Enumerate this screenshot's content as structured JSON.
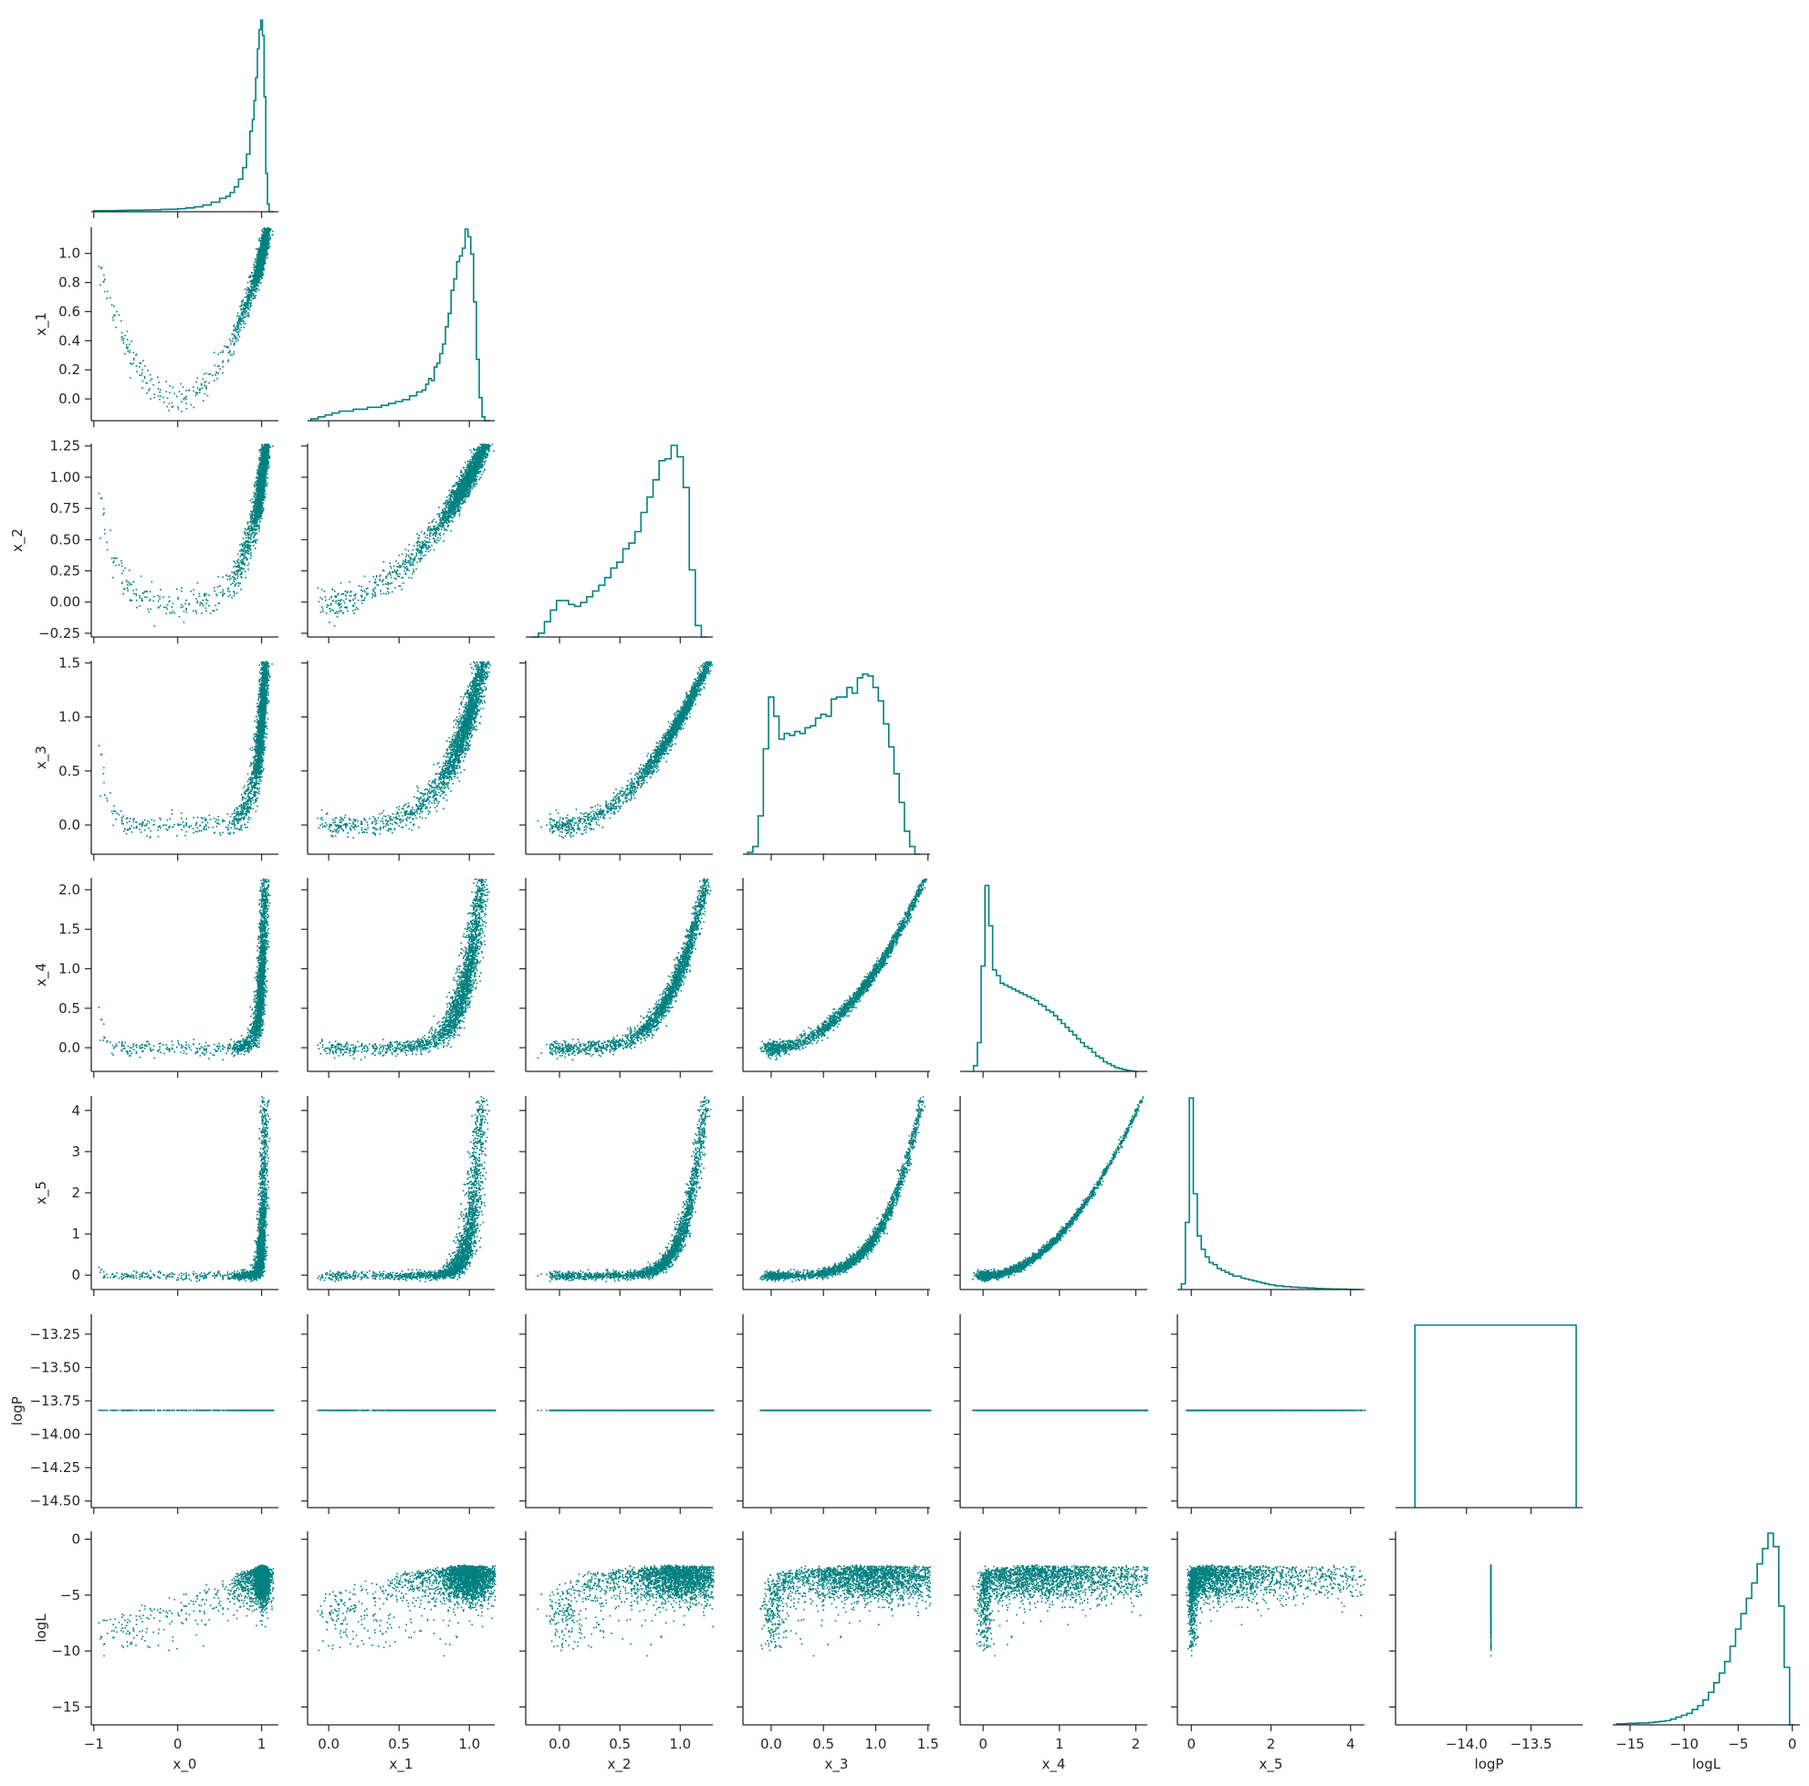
{
  "chart_data": {
    "type": "corner",
    "color": "#008080",
    "variables": [
      "x_0",
      "x_1",
      "x_2",
      "x_3",
      "x_4",
      "x_5",
      "logP",
      "logL"
    ],
    "axis_labels": [
      "x_0",
      "x_1",
      "x_2",
      "x_3",
      "x_4",
      "x_5",
      "logP",
      "logL"
    ],
    "ranges": {
      "x_0": [
        -1.03,
        1.2
      ],
      "x_1": [
        -0.15,
        1.18
      ],
      "x_2": [
        -0.28,
        1.27
      ],
      "x_3": [
        -0.27,
        1.52
      ],
      "x_4": [
        -0.3,
        2.15
      ],
      "x_5": [
        -0.35,
        4.35
      ],
      "logP": [
        -14.55,
        -13.1
      ],
      "logL": [
        -16.6,
        0.7
      ]
    },
    "ticks": {
      "x_0": {
        "values": [
          -1,
          0,
          1
        ],
        "labels": [
          "−1",
          "0",
          "1"
        ]
      },
      "x_1": {
        "values": [
          0,
          0.2,
          0.4,
          0.6,
          0.8,
          1.0
        ],
        "labels": [
          "0.0",
          "0.2",
          "0.4",
          "0.6",
          "0.8",
          "1.0"
        ],
        "xvalues": [
          0,
          0.5,
          1.0
        ],
        "xlabels": [
          "0.0",
          "0.5",
          "1.0"
        ]
      },
      "x_2": {
        "values": [
          -0.25,
          0,
          0.25,
          0.5,
          0.75,
          1.0,
          1.25
        ],
        "labels": [
          "−0.25",
          "0.00",
          "0.25",
          "0.50",
          "0.75",
          "1.00",
          "1.25"
        ],
        "xvalues": [
          0,
          0.5,
          1.0
        ],
        "xlabels": [
          "0.0",
          "0.5",
          "1.0"
        ]
      },
      "x_3": {
        "values": [
          0,
          0.5,
          1.0,
          1.5
        ],
        "labels": [
          "0.0",
          "0.5",
          "1.0",
          "1.5"
        ]
      },
      "x_4": {
        "values": [
          0,
          0.5,
          1.0,
          1.5,
          2.0
        ],
        "labels": [
          "0.0",
          "0.5",
          "1.0",
          "1.5",
          "2.0"
        ],
        "xvalues": [
          0,
          1,
          2
        ],
        "xlabels": [
          "0",
          "1",
          "2"
        ]
      },
      "x_5": {
        "values": [
          0,
          1,
          2,
          3,
          4
        ],
        "labels": [
          "0",
          "1",
          "2",
          "3",
          "4"
        ],
        "xvalues": [
          0,
          2,
          4
        ],
        "xlabels": [
          "0",
          "2",
          "4"
        ]
      },
      "logP": {
        "values": [
          -14.5,
          -14.25,
          -14.0,
          -13.75,
          -13.5,
          -13.25
        ],
        "labels": [
          "−14.50",
          "−14.25",
          "−14.00",
          "−13.75",
          "−13.50",
          "−13.25"
        ],
        "xvalues": [
          -14.0,
          -13.5
        ],
        "xlabels": [
          "−14.0",
          "−13.5"
        ]
      },
      "logL": {
        "values": [
          -15,
          -10,
          -5,
          0
        ],
        "labels": [
          "−15",
          "−10",
          "−5",
          "0"
        ]
      }
    },
    "logP_value": -13.8155,
    "histograms": {
      "x_0": {
        "x": [
          -0.95,
          -0.85,
          -0.75,
          -0.65,
          -0.55,
          -0.45,
          -0.35,
          -0.25,
          -0.15,
          -0.05,
          0.05,
          0.15,
          0.25,
          0.35,
          0.45,
          0.55,
          0.6,
          0.65,
          0.7,
          0.75,
          0.8,
          0.84,
          0.88,
          0.9,
          0.92,
          0.94,
          0.96,
          0.98,
          1.0,
          1.02,
          1.04,
          1.06,
          1.08,
          1.1
        ],
        "density": [
          0.005,
          0.006,
          0.006,
          0.007,
          0.008,
          0.008,
          0.009,
          0.01,
          0.012,
          0.013,
          0.016,
          0.02,
          0.026,
          0.035,
          0.05,
          0.07,
          0.08,
          0.1,
          0.13,
          0.17,
          0.23,
          0.3,
          0.42,
          0.48,
          0.58,
          0.7,
          0.85,
          0.95,
          1.0,
          0.92,
          0.6,
          0.2,
          0.04,
          0.0
        ]
      },
      "x_1": {
        "x": [
          -0.1,
          -0.05,
          0.0,
          0.05,
          0.1,
          0.15,
          0.2,
          0.25,
          0.3,
          0.35,
          0.4,
          0.45,
          0.5,
          0.55,
          0.6,
          0.65,
          0.68,
          0.7,
          0.72,
          0.74,
          0.76,
          0.78,
          0.8,
          0.82,
          0.84,
          0.86,
          0.88,
          0.9,
          0.92,
          0.94,
          0.96,
          0.98,
          1.0,
          1.02,
          1.04,
          1.06,
          1.08,
          1.1,
          1.12
        ],
        "density": [
          0.01,
          0.02,
          0.03,
          0.04,
          0.05,
          0.05,
          0.06,
          0.06,
          0.07,
          0.07,
          0.08,
          0.09,
          0.1,
          0.11,
          0.13,
          0.15,
          0.16,
          0.19,
          0.22,
          0.21,
          0.28,
          0.3,
          0.35,
          0.4,
          0.49,
          0.56,
          0.68,
          0.74,
          0.83,
          0.86,
          0.9,
          1.0,
          0.96,
          0.87,
          0.62,
          0.32,
          0.12,
          0.02,
          0.0
        ]
      },
      "x_2": {
        "x": [
          -0.2,
          -0.15,
          -0.1,
          -0.05,
          0.0,
          0.05,
          0.1,
          0.15,
          0.2,
          0.25,
          0.3,
          0.35,
          0.4,
          0.45,
          0.5,
          0.55,
          0.6,
          0.65,
          0.7,
          0.75,
          0.8,
          0.85,
          0.9,
          0.95,
          1.0,
          1.05,
          1.1,
          1.15,
          1.2
        ],
        "density": [
          0.0,
          0.02,
          0.08,
          0.14,
          0.19,
          0.19,
          0.17,
          0.16,
          0.18,
          0.21,
          0.24,
          0.27,
          0.31,
          0.36,
          0.39,
          0.46,
          0.49,
          0.55,
          0.65,
          0.73,
          0.82,
          0.92,
          0.93,
          1.0,
          0.94,
          0.78,
          0.35,
          0.06,
          0.0
        ]
      },
      "x_3": {
        "x": [
          -0.2,
          -0.15,
          -0.1,
          -0.05,
          0.0,
          0.05,
          0.1,
          0.15,
          0.2,
          0.25,
          0.3,
          0.35,
          0.4,
          0.45,
          0.5,
          0.55,
          0.6,
          0.65,
          0.7,
          0.75,
          0.8,
          0.85,
          0.9,
          0.95,
          1.0,
          1.05,
          1.1,
          1.15,
          1.2,
          1.25,
          1.3,
          1.35,
          1.4
        ],
        "density": [
          0.01,
          0.04,
          0.2,
          0.55,
          0.82,
          0.72,
          0.6,
          0.63,
          0.62,
          0.64,
          0.63,
          0.66,
          0.67,
          0.71,
          0.73,
          0.72,
          0.81,
          0.82,
          0.82,
          0.87,
          0.84,
          0.92,
          0.94,
          0.93,
          0.87,
          0.8,
          0.68,
          0.56,
          0.42,
          0.27,
          0.12,
          0.04,
          0.0
        ]
      },
      "x_4": {
        "x": [
          -0.1,
          -0.05,
          0.0,
          0.05,
          0.1,
          0.15,
          0.2,
          0.25,
          0.3,
          0.35,
          0.4,
          0.45,
          0.5,
          0.55,
          0.6,
          0.65,
          0.7,
          0.75,
          0.8,
          0.85,
          0.9,
          0.95,
          1.0,
          1.05,
          1.1,
          1.15,
          1.2,
          1.25,
          1.3,
          1.35,
          1.4,
          1.45,
          1.5,
          1.55,
          1.6,
          1.65,
          1.7,
          1.75,
          1.8,
          1.85,
          1.9,
          1.95,
          2.0
        ],
        "density": [
          0.03,
          0.15,
          0.55,
          0.97,
          0.76,
          0.53,
          0.5,
          0.46,
          0.45,
          0.44,
          0.43,
          0.42,
          0.41,
          0.4,
          0.39,
          0.38,
          0.37,
          0.35,
          0.34,
          0.32,
          0.31,
          0.29,
          0.27,
          0.25,
          0.23,
          0.21,
          0.19,
          0.17,
          0.15,
          0.13,
          0.12,
          0.1,
          0.08,
          0.07,
          0.05,
          0.04,
          0.03,
          0.02,
          0.015,
          0.01,
          0.005,
          0.003,
          0.0
        ]
      },
      "x_5": {
        "x": [
          -0.2,
          -0.1,
          0.0,
          0.1,
          0.2,
          0.3,
          0.4,
          0.5,
          0.6,
          0.7,
          0.8,
          0.9,
          1.0,
          1.1,
          1.2,
          1.3,
          1.4,
          1.5,
          1.6,
          1.7,
          1.8,
          1.9,
          2.0,
          2.2,
          2.4,
          2.6,
          2.8,
          3.0,
          3.2,
          3.4,
          3.6,
          3.8,
          4.0,
          4.2
        ],
        "density": [
          0.03,
          0.35,
          1.0,
          0.5,
          0.28,
          0.21,
          0.17,
          0.14,
          0.13,
          0.11,
          0.1,
          0.09,
          0.08,
          0.07,
          0.07,
          0.06,
          0.055,
          0.05,
          0.045,
          0.04,
          0.035,
          0.03,
          0.025,
          0.02,
          0.015,
          0.012,
          0.01,
          0.008,
          0.006,
          0.004,
          0.003,
          0.002,
          0.001,
          0.0
        ]
      },
      "logP": {
        "x": [
          -14.4,
          -13.15
        ],
        "density": [
          1.0,
          1.0
        ],
        "step": "box"
      },
      "logL": {
        "x": [
          -16.0,
          -15.5,
          -15.0,
          -14.5,
          -14.0,
          -13.5,
          -13.0,
          -12.5,
          -12.0,
          -11.5,
          -11.0,
          -10.5,
          -10.0,
          -9.5,
          -9.0,
          -8.5,
          -8.0,
          -7.5,
          -7.0,
          -6.5,
          -6.0,
          -5.5,
          -5.0,
          -4.5,
          -4.0,
          -3.5,
          -3.0,
          -2.5,
          -2.0,
          -1.5,
          -1.0,
          -0.5,
          0.0
        ],
        "density": [
          0.005,
          0.006,
          0.008,
          0.008,
          0.01,
          0.01,
          0.012,
          0.015,
          0.018,
          0.022,
          0.03,
          0.04,
          0.05,
          0.06,
          0.08,
          0.1,
          0.13,
          0.17,
          0.22,
          0.27,
          0.33,
          0.41,
          0.5,
          0.58,
          0.66,
          0.74,
          0.84,
          0.92,
          1.0,
          0.93,
          0.62,
          0.3,
          0.0
        ]
      }
    }
  }
}
